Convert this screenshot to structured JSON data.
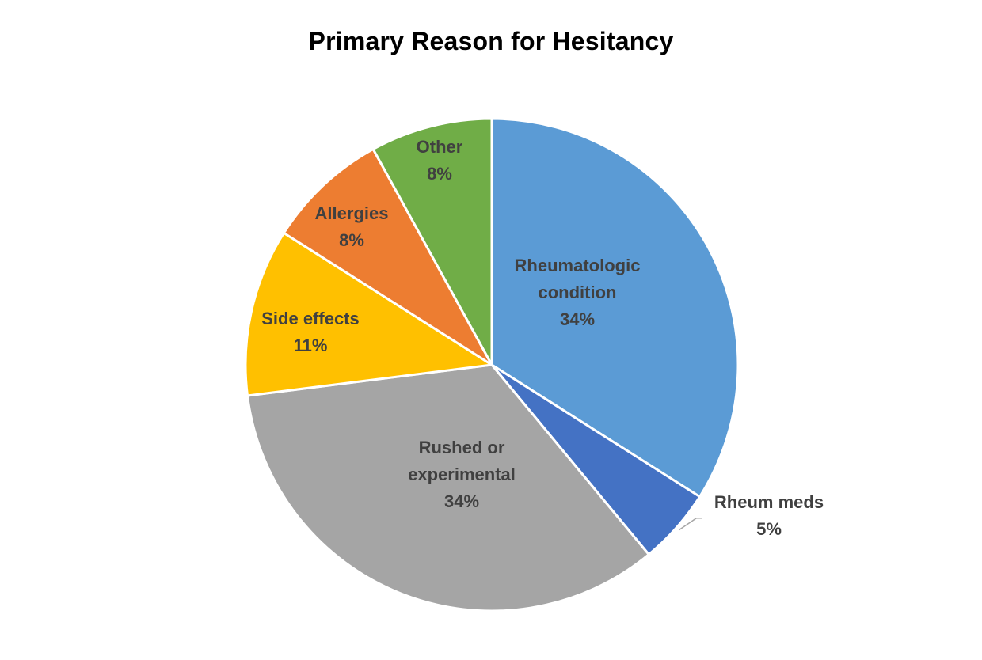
{
  "chart_data": {
    "type": "pie",
    "title": "Primary Reason for Hesitancy",
    "slices": [
      {
        "name": "Rheumatologic condition",
        "label_lines": [
          "Rheumatologic",
          "condition",
          "34%"
        ],
        "value": 34,
        "color": "#5B9BD5"
      },
      {
        "name": "Rheum meds",
        "label_lines": [
          "Rheum meds",
          "5%"
        ],
        "value": 5,
        "color": "#4472C4"
      },
      {
        "name": "Rushed or experimental",
        "label_lines": [
          "Rushed or",
          "experimental",
          "34%"
        ],
        "value": 34,
        "color": "#A5A5A5"
      },
      {
        "name": "Side effects",
        "label_lines": [
          "Side effects",
          "11%"
        ],
        "value": 11,
        "color": "#FFC000"
      },
      {
        "name": "Allergies",
        "label_lines": [
          "Allergies",
          "8%"
        ],
        "value": 8,
        "color": "#ED7D31"
      },
      {
        "name": "Other",
        "label_lines": [
          "Other",
          "8%"
        ],
        "value": 8,
        "color": "#70AD47"
      }
    ],
    "legend": "none",
    "label_color": "#404040"
  }
}
